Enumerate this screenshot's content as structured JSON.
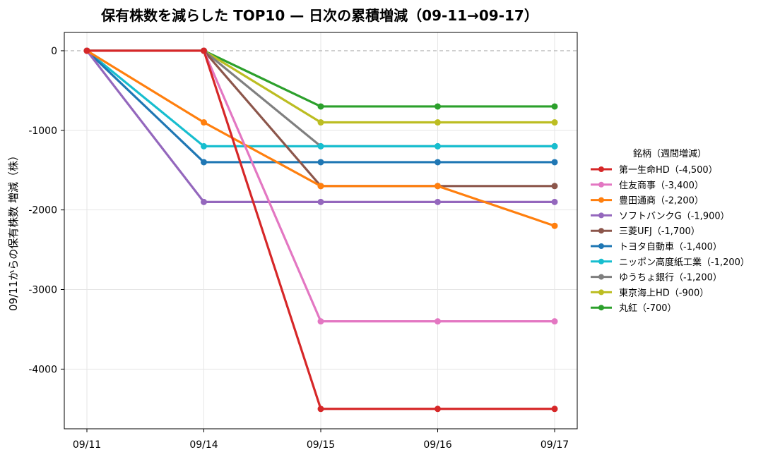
{
  "chart_data": {
    "type": "line",
    "title": "保有株数を減らした TOP10 — 日次の累積増減（09-11→09-17）",
    "xlabel": "",
    "ylabel": "09/11からの保有株数 増減（株）",
    "categories": [
      "09/11",
      "09/14",
      "09/15",
      "09/16",
      "09/17"
    ],
    "ylim": [
      -4750,
      230
    ],
    "yticks": [
      0,
      -1000,
      -2000,
      -3000,
      -4000
    ],
    "grid": true,
    "zero_line": "dashed",
    "legend_title": "銘柄（週間増減）",
    "legend_position": "right",
    "series": [
      {
        "name": "第一生命HD（-4,500）",
        "color": "#d62728",
        "values": [
          0,
          0,
          -4500,
          -4500,
          -4500
        ]
      },
      {
        "name": "住友商事（-3,400）",
        "color": "#e377c2",
        "values": [
          0,
          0,
          -3400,
          -3400,
          -3400
        ]
      },
      {
        "name": "豊田通商（-2,200）",
        "color": "#ff7f0e",
        "values": [
          0,
          -900,
          -1700,
          -1700,
          -2200
        ]
      },
      {
        "name": "ソフトバンクG（-1,900）",
        "color": "#9467bd",
        "values": [
          0,
          -1900,
          -1900,
          -1900,
          -1900
        ]
      },
      {
        "name": "三菱UFJ（-1,700）",
        "color": "#8c564b",
        "values": [
          0,
          0,
          -1700,
          -1700,
          -1700
        ]
      },
      {
        "name": "トヨタ自動車（-1,400）",
        "color": "#1f77b4",
        "values": [
          0,
          -1400,
          -1400,
          -1400,
          -1400
        ]
      },
      {
        "name": "ニッポン高度紙工業（-1,200）",
        "color": "#17becf",
        "values": [
          0,
          -1200,
          -1200,
          -1200,
          -1200
        ]
      },
      {
        "name": "ゆうちょ銀行（-1,200）",
        "color": "#7f7f7f",
        "values": [
          0,
          0,
          -1200,
          -1200,
          -1200
        ]
      },
      {
        "name": "東京海上HD（-900）",
        "color": "#bcbd22",
        "values": [
          0,
          0,
          -900,
          -900,
          -900
        ]
      },
      {
        "name": "丸紅（-700）",
        "color": "#2ca02c",
        "values": [
          0,
          0,
          -700,
          -700,
          -700
        ]
      }
    ]
  }
}
